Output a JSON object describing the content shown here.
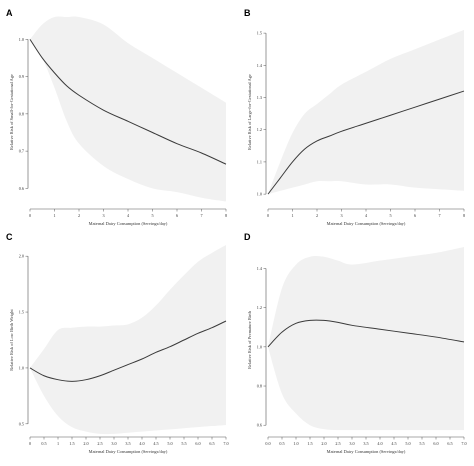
{
  "chart_data": [
    {
      "id": "A",
      "type": "line",
      "panel_label": "A",
      "xlabel": "Maternal Dairy Consumption (Servings/day)",
      "ylabel": "Relative Risk of Small-for-Gestational Age",
      "xlim": [
        0,
        8
      ],
      "ylim": [
        0.55,
        1.06
      ],
      "x_ticks": [
        0,
        1,
        2,
        3,
        4,
        5,
        6,
        7,
        8
      ],
      "x_tick_labels": [
        "0",
        "1",
        "2",
        "3",
        "4",
        "5",
        "6",
        "7",
        "8"
      ],
      "y_ticks": [
        0.6,
        0.7,
        0.8,
        0.9,
        1.0
      ],
      "y_tick_labels": [
        "0.6",
        "0.7",
        "0.8",
        "0.9",
        "1.0"
      ],
      "x": [
        0,
        0.5,
        1,
        1.5,
        2,
        3,
        4,
        5,
        6,
        7,
        8
      ],
      "y": [
        1.0,
        0.95,
        0.91,
        0.875,
        0.85,
        0.81,
        0.78,
        0.75,
        0.72,
        0.695,
        0.665
      ],
      "ci_lower": [
        1.0,
        0.95,
        0.87,
        0.78,
        0.72,
        0.66,
        0.625,
        0.6,
        0.59,
        0.575,
        0.565
      ],
      "ci_upper": [
        1.0,
        1.04,
        1.06,
        1.06,
        1.06,
        1.04,
        0.99,
        0.95,
        0.91,
        0.87,
        0.83
      ]
    },
    {
      "id": "B",
      "type": "line",
      "panel_label": "B",
      "xlabel": "Maternal Dairy Consumption (Servings/day)",
      "ylabel": "Relative Risk of Large-for-Gestational Age",
      "xlim": [
        0,
        8
      ],
      "ylim": [
        0.96,
        1.55
      ],
      "x_ticks": [
        0,
        1,
        2,
        3,
        4,
        5,
        6,
        7,
        8
      ],
      "x_tick_labels": [
        "0",
        "1",
        "2",
        "3",
        "4",
        "5",
        "6",
        "7",
        "8"
      ],
      "y_ticks": [
        1.0,
        1.1,
        1.2,
        1.3,
        1.4,
        1.5
      ],
      "y_tick_labels": [
        "1.0",
        "1.1",
        "1.2",
        "1.3",
        "1.4",
        "1.5"
      ],
      "x": [
        0,
        0.5,
        1,
        1.5,
        2,
        2.5,
        3,
        4,
        5,
        6,
        7,
        8
      ],
      "y": [
        1.0,
        1.05,
        1.1,
        1.14,
        1.165,
        1.18,
        1.195,
        1.22,
        1.245,
        1.27,
        1.295,
        1.32
      ],
      "ci_lower": [
        1.0,
        1.01,
        1.02,
        1.03,
        1.04,
        1.04,
        1.04,
        1.03,
        1.03,
        1.02,
        1.015,
        1.01
      ],
      "ci_upper": [
        1.0,
        1.1,
        1.19,
        1.25,
        1.28,
        1.31,
        1.34,
        1.38,
        1.42,
        1.45,
        1.48,
        1.51
      ]
    },
    {
      "id": "C",
      "type": "line",
      "panel_label": "C",
      "xlabel": "Maternal Dairy Consumption (Servings/day)",
      "ylabel": "Relative Risk of Low Birth Weight",
      "xlim": [
        0,
        7
      ],
      "ylim": [
        0.4,
        2.1
      ],
      "x_ticks": [
        0,
        0.5,
        1,
        1.5,
        2,
        2.5,
        3,
        3.5,
        4,
        4.5,
        5,
        5.5,
        6,
        6.5,
        7
      ],
      "x_tick_labels": [
        "0",
        "0.5",
        "1",
        "1.5",
        "2.0",
        "2.5",
        "3.0",
        "3.5",
        "4.0",
        "4.5",
        "5.0",
        "5.5",
        "6.0",
        "6.5",
        "7.0"
      ],
      "y_ticks": [
        0.5,
        1.0,
        1.5,
        2.0
      ],
      "y_tick_labels": [
        "0.5",
        "1.0",
        "1.5",
        "2.0"
      ],
      "x": [
        0,
        0.5,
        1,
        1.5,
        2,
        2.5,
        3,
        3.5,
        4,
        4.5,
        5,
        5.5,
        6,
        6.5,
        7
      ],
      "y": [
        1.0,
        0.93,
        0.895,
        0.88,
        0.895,
        0.93,
        0.98,
        1.03,
        1.08,
        1.14,
        1.19,
        1.25,
        1.31,
        1.36,
        1.42
      ],
      "ci_lower": [
        1.0,
        0.75,
        0.57,
        0.47,
        0.43,
        0.41,
        0.41,
        0.42,
        0.43,
        0.44,
        0.45,
        0.46,
        0.47,
        0.48,
        0.49
      ],
      "ci_upper": [
        1.0,
        1.17,
        1.34,
        1.36,
        1.37,
        1.37,
        1.38,
        1.39,
        1.45,
        1.56,
        1.7,
        1.83,
        1.95,
        2.03,
        2.1
      ]
    },
    {
      "id": "D",
      "type": "line",
      "panel_label": "D",
      "xlabel": "Maternal Dairy Consumption (Servings/day)",
      "ylabel": "Relative Risk of Premature Birth",
      "xlim": [
        0,
        7
      ],
      "ylim": [
        0.55,
        1.52
      ],
      "x_ticks": [
        0,
        0.5,
        1,
        1.5,
        2,
        2.5,
        3,
        3.5,
        4,
        4.5,
        5,
        5.5,
        6,
        6.5,
        7
      ],
      "x_tick_labels": [
        "0.0",
        "0.5",
        "1.0",
        "1.5",
        "2.0",
        "2.5",
        "3.0",
        "3.5",
        "4.0",
        "4.5",
        "5.0",
        "5.5",
        "6.0",
        "6.5",
        "7.0"
      ],
      "y_ticks": [
        0.6,
        0.8,
        1.0,
        1.2,
        1.4
      ],
      "y_tick_labels": [
        "0.6",
        "0.8",
        "1.0",
        "1.2",
        "1.4"
      ],
      "x": [
        0,
        0.5,
        1,
        1.5,
        2,
        2.5,
        3,
        4,
        5,
        6,
        7
      ],
      "y": [
        1.0,
        1.075,
        1.12,
        1.135,
        1.135,
        1.125,
        1.11,
        1.09,
        1.07,
        1.05,
        1.025
      ],
      "ci_lower": [
        1.0,
        0.76,
        0.66,
        0.6,
        0.58,
        0.575,
        0.575,
        0.575,
        0.575,
        0.575,
        0.575
      ],
      "ci_upper": [
        1.0,
        1.3,
        1.42,
        1.46,
        1.46,
        1.44,
        1.42,
        1.44,
        1.46,
        1.48,
        1.51
      ]
    }
  ]
}
